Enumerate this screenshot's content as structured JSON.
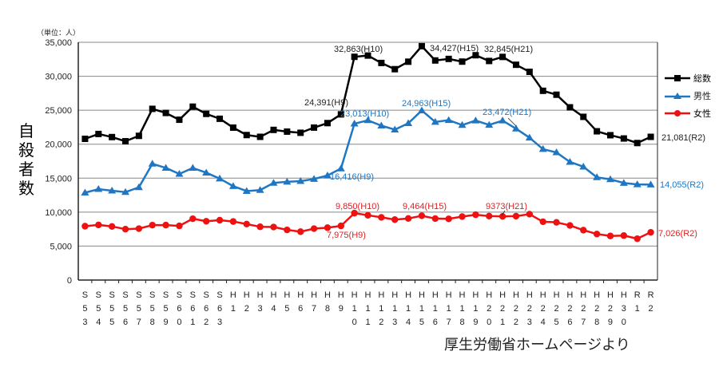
{
  "chart_data": {
    "type": "line",
    "unit_label": "（単位：人）",
    "ylabel": "自殺者数",
    "ylim": [
      0,
      35000
    ],
    "yticks": [
      "0",
      "5,000",
      "10,000",
      "15,000",
      "20,000",
      "25,000",
      "30,000",
      "35,000"
    ],
    "ytick_values": [
      0,
      5000,
      10000,
      15000,
      20000,
      25000,
      30000,
      35000
    ],
    "grid": true,
    "legend_placement": "right",
    "categories": [
      "S53",
      "S54",
      "S55",
      "S56",
      "S57",
      "S58",
      "S59",
      "S60",
      "S61",
      "S62",
      "S63",
      "H1",
      "H2",
      "H3",
      "H4",
      "H5",
      "H6",
      "H7",
      "H8",
      "H9",
      "H10",
      "H11",
      "H12",
      "H13",
      "H14",
      "H15",
      "H16",
      "H17",
      "H18",
      "H19",
      "H20",
      "H21",
      "H22",
      "H23",
      "H24",
      "H25",
      "H26",
      "H27",
      "H28",
      "H29",
      "H30",
      "R1",
      "R2"
    ],
    "series": [
      {
        "name": "総数",
        "color": "#000000",
        "marker": "square",
        "values": [
          20788,
          21503,
          21048,
          20434,
          21228,
          25202,
          24596,
          23599,
          25524,
          24460,
          23742,
          22436,
          21346,
          21084,
          22104,
          21851,
          21679,
          22445,
          23104,
          24391,
          32863,
          33048,
          31957,
          31042,
          32143,
          34427,
          32325,
          32552,
          32155,
          33093,
          32249,
          32845,
          31690,
          30651,
          27858,
          27283,
          25427,
          24025,
          21897,
          21321,
          20840,
          20169,
          21081
        ]
      },
      {
        "name": "男性",
        "color": "#1f77c4",
        "marker": "triangle",
        "values": [
          12859,
          13386,
          13155,
          12942,
          13654,
          17116,
          16508,
          15624,
          16497,
          15802,
          14934,
          13818,
          13102,
          13242,
          14296,
          14468,
          14560,
          14874,
          15393,
          16416,
          23013,
          23512,
          22727,
          22144,
          23080,
          24963,
          23272,
          23540,
          22813,
          23478,
          22831,
          23472,
          22283,
          20955,
          19273,
          18787,
          17386,
          16681,
          15121,
          14826,
          14290,
          14078,
          14055
        ]
      },
      {
        "name": "女性",
        "color": "#ee1111",
        "marker": "circle",
        "values": [
          7929,
          8117,
          7893,
          7492,
          7574,
          8086,
          8088,
          7975,
          9027,
          8658,
          8808,
          8618,
          8244,
          7842,
          7808,
          7383,
          7119,
          7571,
          7711,
          7975,
          9850,
          9536,
          9230,
          8898,
          9063,
          9464,
          9053,
          9012,
          9342,
          9615,
          9418,
          9373,
          9407,
          9696,
          8585,
          8496,
          8041,
          7344,
          6776,
          6495,
          6550,
          6091,
          7026
        ]
      }
    ],
    "annotations": {
      "total": [
        "24,391(H9)",
        "32,863(H10)",
        "34,427(H15)",
        "32,845(H21)",
        "21,081(R2)"
      ],
      "male": [
        "16,416(H9)",
        "23,013(H10)",
        "24,963(H15)",
        "23,472(H21)",
        "14,055(R2)"
      ],
      "female": [
        "7,975(H9)",
        "9,850(H10)",
        "9,464(H15)",
        "9373(H21)",
        "7,026(R2)"
      ]
    }
  },
  "source": "厚生労働省ホームページより"
}
